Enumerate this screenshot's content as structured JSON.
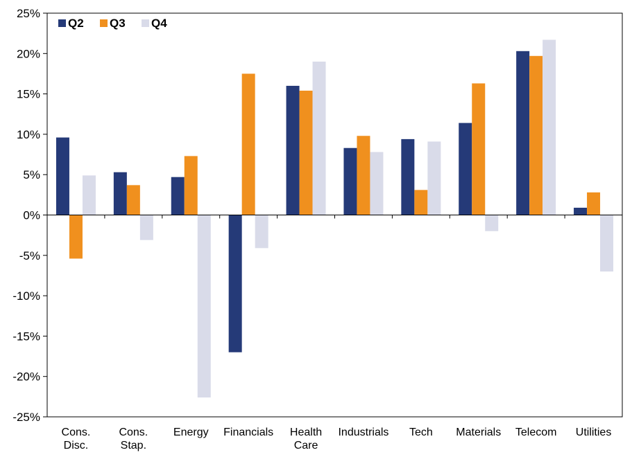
{
  "chart_data": {
    "type": "bar",
    "categories": [
      [
        "Cons.",
        "Disc."
      ],
      [
        "Cons.",
        "Stap."
      ],
      [
        "Energy"
      ],
      [
        "Financials"
      ],
      [
        "Health",
        "Care"
      ],
      [
        "Industrials"
      ],
      [
        "Tech"
      ],
      [
        "Materials"
      ],
      [
        "Telecom"
      ],
      [
        "Utilities"
      ]
    ],
    "series": [
      {
        "name": "Q2",
        "color": "#253a78",
        "values": [
          9.6,
          5.3,
          4.7,
          -17.0,
          16.0,
          8.3,
          9.4,
          11.4,
          20.3,
          0.9
        ]
      },
      {
        "name": "Q3",
        "color": "#f0901e",
        "values": [
          -5.4,
          3.7,
          7.3,
          17.5,
          15.4,
          9.8,
          3.1,
          16.3,
          19.7,
          2.8
        ]
      },
      {
        "name": "Q4",
        "color": "#d9dbe9",
        "values": [
          4.9,
          -3.1,
          -22.6,
          -4.1,
          19.0,
          7.8,
          9.1,
          -2.0,
          21.7,
          -7.0
        ]
      }
    ],
    "ylim": [
      -25,
      25
    ],
    "yticks": [
      -25,
      -20,
      -15,
      -10,
      -5,
      0,
      5,
      10,
      15,
      20,
      25
    ],
    "ytick_suffix": "%",
    "legend_position": "top-left",
    "grid": false,
    "title": "",
    "xlabel": "",
    "ylabel": ""
  }
}
